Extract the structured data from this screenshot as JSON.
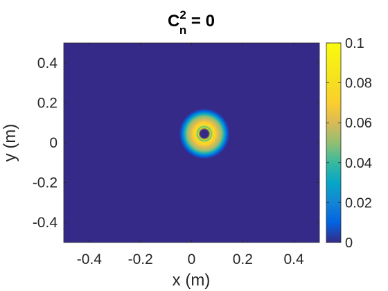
{
  "chart_data": {
    "type": "heatmap",
    "title": {
      "base": "C",
      "superscript": "2",
      "subscript": "n",
      "rest": " = 0"
    },
    "xlabel": "x (m)",
    "ylabel": "y (m)",
    "xlim": [
      -0.5,
      0.5
    ],
    "ylim": [
      -0.5,
      0.5
    ],
    "xticks": [
      -0.4,
      -0.2,
      0,
      0.2,
      0.4
    ],
    "yticks": [
      -0.4,
      -0.2,
      0,
      0.2,
      0.4
    ],
    "xtick_labels": [
      "-0.4",
      "-0.2",
      "0",
      "0.2",
      "0.4"
    ],
    "ytick_labels": [
      "-0.4",
      "-0.2",
      "0",
      "0.2",
      "0.4"
    ],
    "colorbar": {
      "lim": [
        0,
        0.1
      ],
      "ticks": [
        0,
        0.02,
        0.04,
        0.06,
        0.08,
        0.1
      ],
      "tick_labels": [
        "0",
        "0.02",
        "0.04",
        "0.06",
        "0.08",
        "0.1"
      ],
      "colormap": "parula"
    },
    "field": {
      "shape": "ring",
      "center": [
        0.05,
        0.045
      ],
      "ring_radius": 0.025,
      "ring_width": 0.035,
      "peak": 0.1
    },
    "grid": false,
    "legend": "none"
  }
}
